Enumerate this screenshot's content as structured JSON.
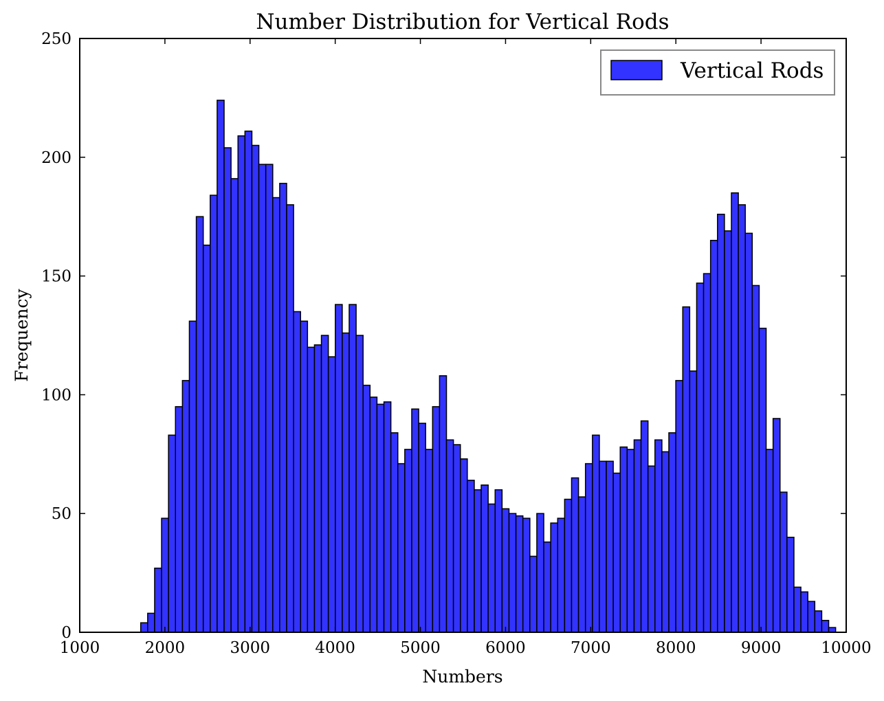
{
  "chart_data": {
    "type": "bar",
    "title": "Number Distribution for Vertical Rods",
    "xlabel": "Numbers",
    "ylabel": "Frequency",
    "xlim": [
      1000,
      10000
    ],
    "ylim": [
      0,
      250
    ],
    "xticks": [
      "1000",
      "2000",
      "3000",
      "4000",
      "5000",
      "6000",
      "7000",
      "8000",
      "9000",
      "10000"
    ],
    "yticks": [
      "0",
      "50",
      "100",
      "150",
      "200",
      "250"
    ],
    "legend": {
      "position": "top-right",
      "entries": [
        "Vertical Rods"
      ]
    },
    "bar_color": "#3333ff",
    "edge_color": "#000000",
    "grid": false,
    "bin_width": 81.6,
    "bin_start": 1716,
    "series": [
      {
        "name": "Vertical Rods",
        "values": [
          4,
          8,
          27,
          48,
          83,
          95,
          106,
          131,
          175,
          163,
          184,
          224,
          204,
          191,
          209,
          211,
          205,
          197,
          197,
          183,
          189,
          180,
          135,
          131,
          120,
          121,
          125,
          116,
          138,
          126,
          138,
          125,
          104,
          99,
          96,
          97,
          84,
          71,
          77,
          94,
          88,
          77,
          95,
          108,
          81,
          79,
          73,
          64,
          60,
          62,
          54,
          60,
          52,
          50,
          49,
          48,
          32,
          50,
          38,
          46,
          48,
          56,
          65,
          57,
          71,
          83,
          72,
          72,
          67,
          78,
          77,
          81,
          89,
          70,
          81,
          76,
          84,
          106,
          137,
          110,
          147,
          151,
          165,
          176,
          169,
          185,
          180,
          168,
          146,
          128,
          77,
          90,
          59,
          40,
          19,
          17,
          13,
          9,
          5,
          2
        ]
      }
    ]
  }
}
